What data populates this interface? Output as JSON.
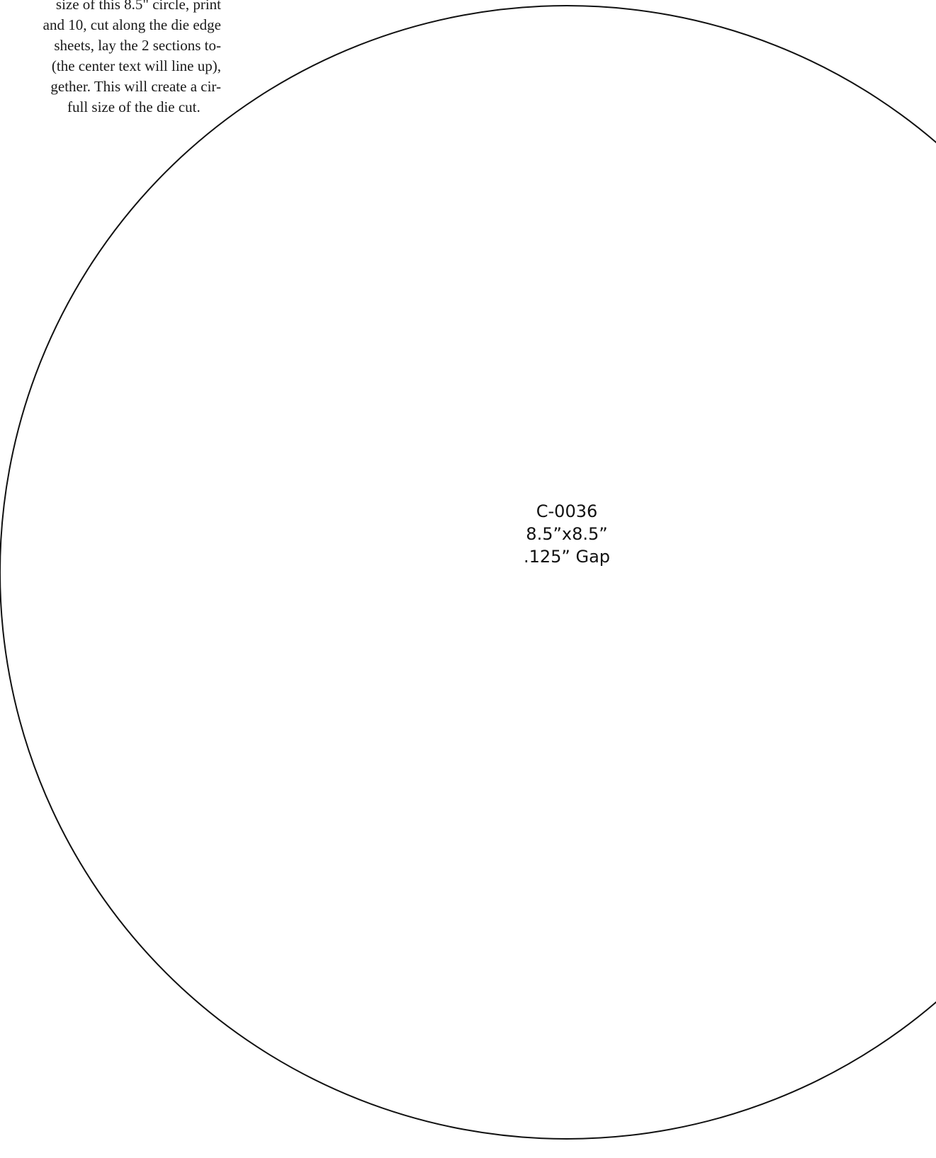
{
  "instructions": {
    "lines": [
      "size of this 8.5\" circle, print",
      "and 10, cut along the die edge",
      "sheets, lay the 2 sections to-",
      "(the center text will line up),",
      "gether.  This will create a cir-",
      "full size of the die cut."
    ]
  },
  "die": {
    "code": "C-0036",
    "size": "8.5”x8.5”",
    "gap": ".125” Gap"
  }
}
